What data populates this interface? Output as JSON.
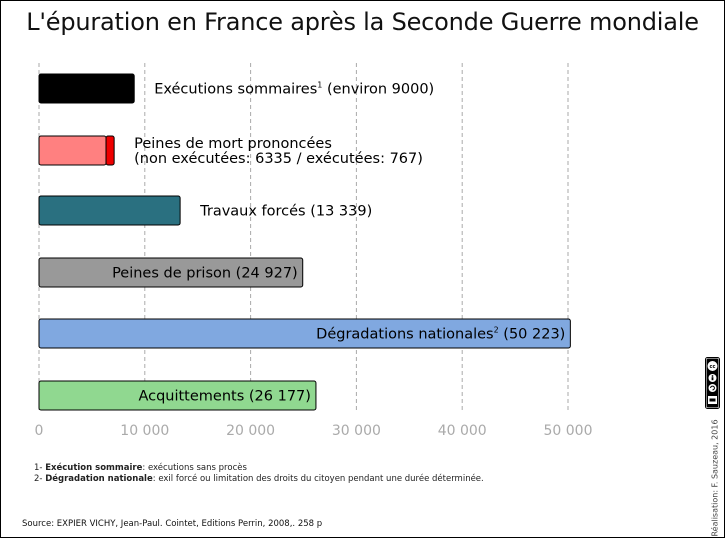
{
  "title": "L'épuration en France après la Seconde Guerre mondiale",
  "footnotes": [
    {
      "num": "1- ",
      "term": "Exécution sommaire",
      "text": ": exécutions sans procès"
    },
    {
      "num": "2- ",
      "term": "Dégradation nationale",
      "text": ": exil forcé ou limitation des droits du citoyen pendant une durée déterminée."
    }
  ],
  "source": "Source: EXPIER VICHY, Jean-Paul. Cointet, Editions Perrin, 2008,. 258 p",
  "credit": "Réalisation: F. Sauzeau, 2016",
  "license_badge": "cc-by-sa-icon",
  "chart_data": {
    "type": "bar",
    "orientation": "horizontal",
    "xlim": [
      0,
      55000
    ],
    "xticks": [
      0,
      10000,
      20000,
      30000,
      40000,
      50000
    ],
    "xtick_labels": [
      "0",
      "10 000",
      "20 000",
      "30 000",
      "40 000",
      "50 000"
    ],
    "grid": "vertical dashed",
    "bars": [
      {
        "label": "Exécutions sommaires",
        "sup": "1",
        "suffix": " (environ 9000)",
        "value": 9000,
        "color": "#000000",
        "label_position": "outside"
      },
      {
        "label": "Peines de mort prononcées",
        "line2": "(non exécutées: 6335 / exécutées: 767)",
        "segments": [
          {
            "name": "non exécutées",
            "value": 6335,
            "color": "#ff8080"
          },
          {
            "name": "exécutées",
            "value": 767,
            "color": "#ee0000"
          }
        ],
        "value": 7102,
        "label_position": "outside"
      },
      {
        "label": "Travaux forcés (13 339)",
        "value": 13339,
        "color": "#2a7080",
        "label_position": "outside"
      },
      {
        "label": "Peines de prison (24 927)",
        "value": 24927,
        "color": "#999999",
        "label_position": "inside"
      },
      {
        "label": "Dégradations nationales",
        "sup": "2",
        "suffix": " (50 223)",
        "value": 50223,
        "color": "#80a8e0",
        "label_position": "inside"
      },
      {
        "label": "Acquittements (26 177)",
        "value": 26177,
        "color": "#90d890",
        "label_position": "inside"
      }
    ]
  }
}
